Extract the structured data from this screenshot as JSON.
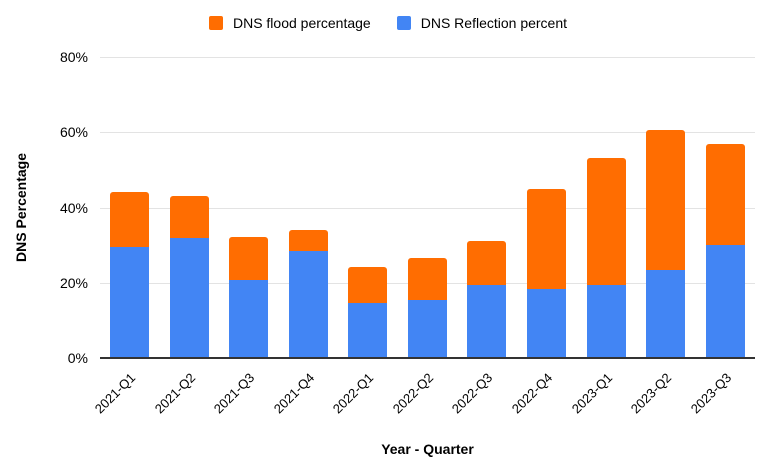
{
  "legend": {
    "items": [
      {
        "label": "DNS flood percentage",
        "color": "#FF6D01"
      },
      {
        "label": "DNS Reflection percent",
        "color": "#4285F4"
      }
    ]
  },
  "colors": {
    "series_flood": "#FF6D01",
    "series_reflection": "#4285F4",
    "gridline": "#E3E3E3",
    "axis_line": "#333333",
    "text": "#000000",
    "background": "#FFFFFF"
  },
  "chart_data": {
    "type": "bar",
    "stacked": true,
    "title": "",
    "xlabel": "Year - Quarter",
    "ylabel": "DNS Percentage",
    "categories": [
      "2021-Q1",
      "2021-Q2",
      "2021-Q3",
      "2021-Q4",
      "2022-Q1",
      "2022-Q2",
      "2022-Q3",
      "2022-Q4",
      "2023-Q1",
      "2023-Q2",
      "2023-Q3"
    ],
    "series": [
      {
        "name": "DNS Reflection percent",
        "color": "#4285F4",
        "values": [
          29.5,
          31.8,
          20.7,
          28.4,
          14.5,
          15.5,
          19.5,
          18.4,
          19.4,
          23.5,
          30.1
        ]
      },
      {
        "name": "DNS flood percentage",
        "color": "#FF6D01",
        "values": [
          14.7,
          11.2,
          11.5,
          5.6,
          9.7,
          11.0,
          11.7,
          26.5,
          33.8,
          37.0,
          26.9
        ]
      }
    ],
    "totals": [
      44.2,
      43.0,
      32.2,
      34.0,
      24.2,
      26.5,
      31.2,
      44.9,
      53.2,
      60.5,
      57.0
    ],
    "ylim": [
      0,
      80
    ],
    "yticks": [
      "0%",
      "20%",
      "40%",
      "60%",
      "80%"
    ],
    "grid": true,
    "legend_position": "top"
  }
}
